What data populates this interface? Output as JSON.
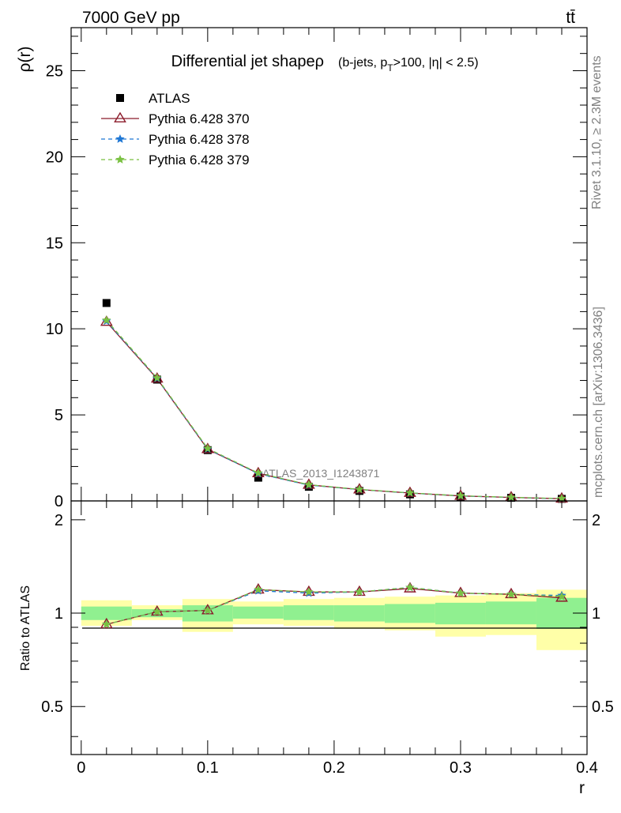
{
  "header": {
    "energy_label": "7000 GeV pp",
    "process_label": "tt̄"
  },
  "side_labels": {
    "rivet": "Rivet 3.1.10, ≥ 2.3M events",
    "mcplots": "mcplots.cern.ch [arXiv:1306.3436]"
  },
  "chart_data": [
    {
      "type": "scatter",
      "title": "Differential jet shapeρ",
      "subtitle": "(b-jets, p_T>100, |η| < 2.5)",
      "ylabel": "ρ(r)",
      "xlim": [
        -0.008,
        0.4
      ],
      "ylim": [
        0,
        27.5
      ],
      "y_ticks": [
        0,
        5,
        10,
        15,
        20,
        25
      ],
      "watermark": "ATLAS_2013_I1243871",
      "legend_position": "top-left",
      "x": [
        0.02,
        0.06,
        0.1,
        0.14,
        0.18,
        0.22,
        0.26,
        0.3,
        0.34,
        0.38
      ],
      "series": [
        {
          "name": "ATLAS",
          "color": "#000000",
          "marker": "square",
          "values": [
            11.5,
            7.05,
            2.95,
            1.35,
            0.82,
            0.58,
            0.38,
            0.25,
            0.18,
            0.12
          ]
        },
        {
          "name": "Pythia 6.428 370",
          "color": "#8b1a2a",
          "marker": "triangle",
          "values": [
            10.4,
            7.1,
            3.0,
            1.6,
            0.93,
            0.66,
            0.46,
            0.29,
            0.2,
            0.13
          ]
        },
        {
          "name": "Pythia 6.428 378",
          "color": "#1f77d4",
          "marker": "star",
          "values": [
            10.45,
            7.12,
            3.02,
            1.58,
            0.92,
            0.66,
            0.46,
            0.29,
            0.2,
            0.13
          ]
        },
        {
          "name": "Pythia 6.428 379",
          "color": "#7ac142",
          "marker": "star",
          "values": [
            10.5,
            7.15,
            3.05,
            1.62,
            0.94,
            0.67,
            0.47,
            0.3,
            0.21,
            0.14
          ]
        }
      ]
    },
    {
      "type": "line",
      "ylabel": "Ratio to ATLAS",
      "xlabel": "r",
      "xlim": [
        -0.008,
        0.4
      ],
      "ylim": [
        0.35,
        2.3
      ],
      "y_ticks": [
        0.5,
        1,
        2
      ],
      "x_ticks": [
        0,
        0.1,
        0.2,
        0.3,
        0.4
      ],
      "x": [
        0.02,
        0.06,
        0.1,
        0.14,
        0.18,
        0.22,
        0.26,
        0.3,
        0.34,
        0.38
      ],
      "bin_edges": [
        0.0,
        0.04,
        0.08,
        0.12,
        0.16,
        0.2,
        0.24,
        0.28,
        0.32,
        0.36,
        0.4
      ],
      "band_inner": [
        [
          0.95,
          1.05
        ],
        [
          0.97,
          1.03
        ],
        [
          0.94,
          1.06
        ],
        [
          0.96,
          1.05
        ],
        [
          0.95,
          1.06
        ],
        [
          0.94,
          1.06
        ],
        [
          0.93,
          1.07
        ],
        [
          0.92,
          1.08
        ],
        [
          0.92,
          1.09
        ],
        [
          0.89,
          1.12
        ]
      ],
      "band_outer": [
        [
          0.91,
          1.1
        ],
        [
          0.95,
          1.06
        ],
        [
          0.87,
          1.11
        ],
        [
          0.92,
          1.09
        ],
        [
          0.91,
          1.11
        ],
        [
          0.89,
          1.12
        ],
        [
          0.88,
          1.13
        ],
        [
          0.84,
          1.14
        ],
        [
          0.85,
          1.16
        ],
        [
          0.76,
          1.19
        ]
      ],
      "series": [
        {
          "name": "Pythia 6.428 370",
          "color": "#8b1a2a",
          "marker": "triangle",
          "values": [
            0.92,
            1.01,
            1.02,
            1.19,
            1.17,
            1.17,
            1.2,
            1.16,
            1.15,
            1.12
          ]
        },
        {
          "name": "Pythia 6.428 378",
          "color": "#1f77d4",
          "marker": "star",
          "values": [
            0.92,
            1.01,
            1.02,
            1.18,
            1.16,
            1.17,
            1.21,
            1.16,
            1.15,
            1.14
          ]
        },
        {
          "name": "Pythia 6.428 379",
          "color": "#7ac142",
          "marker": "star",
          "values": [
            0.92,
            1.01,
            1.02,
            1.19,
            1.17,
            1.17,
            1.21,
            1.16,
            1.15,
            1.13
          ]
        }
      ]
    }
  ]
}
